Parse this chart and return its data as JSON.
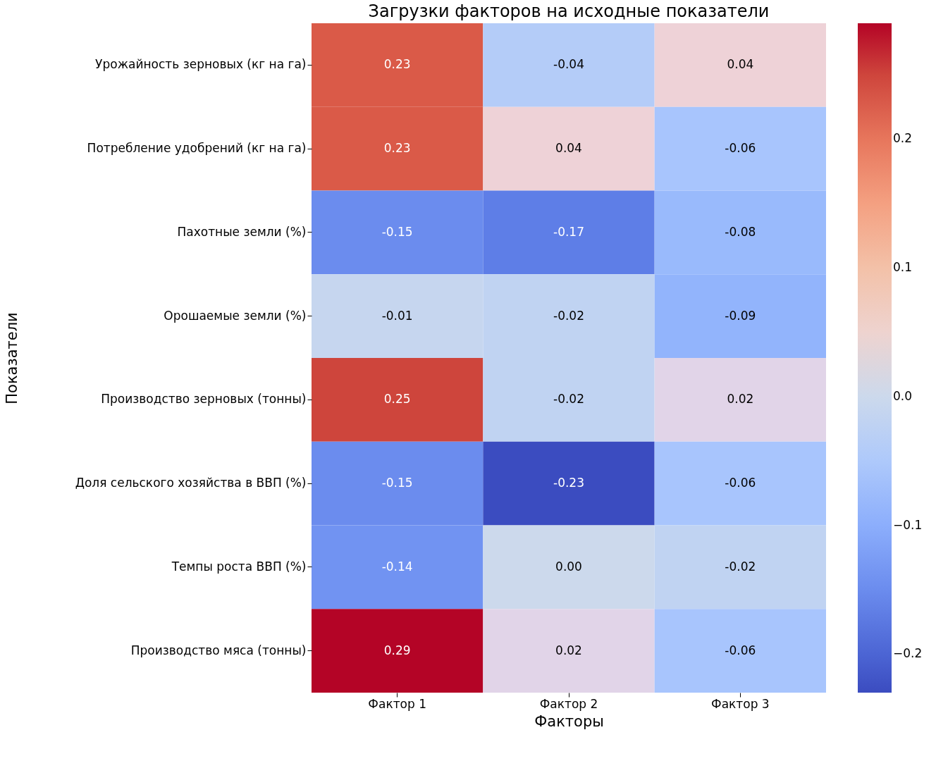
{
  "chart_data": {
    "type": "heatmap",
    "title": "Загрузки факторов на исходные показатели",
    "xlabel": "Факторы",
    "ylabel": "Показатели",
    "categories": [
      "Фактор 1",
      "Фактор 2",
      "Фактор 3"
    ],
    "y_categories": [
      "Урожайность зерновых (кг на га)",
      "Потребление удобрений (кг на га)",
      "Пахотные земли (%)",
      "Орошаемые земли (%)",
      "Производство зерновых (тонны)",
      "Доля сельского хозяйства в ВВП (%)",
      "Темпы роста ВВП (%)",
      "Производство мяса (тонны)"
    ],
    "cells": [
      [
        0.23,
        -0.04,
        0.04
      ],
      [
        0.23,
        0.04,
        -0.06
      ],
      [
        -0.15,
        -0.17,
        -0.08
      ],
      [
        -0.01,
        -0.02,
        -0.09
      ],
      [
        0.25,
        -0.02,
        0.02
      ],
      [
        -0.15,
        -0.23,
        -0.06
      ],
      [
        -0.14,
        0.0,
        -0.02
      ],
      [
        0.29,
        0.02,
        -0.06
      ]
    ],
    "cell_labels": [
      [
        "0.23",
        "-0.04",
        "0.04"
      ],
      [
        "0.23",
        "0.04",
        "-0.06"
      ],
      [
        "-0.15",
        "-0.17",
        "-0.08"
      ],
      [
        "-0.01",
        "-0.02",
        "-0.09"
      ],
      [
        "0.25",
        "-0.02",
        "0.02"
      ],
      [
        "-0.15",
        "-0.23",
        "-0.06"
      ],
      [
        "-0.14",
        "0.00",
        "-0.02"
      ],
      [
        "0.29",
        "0.02",
        "-0.06"
      ]
    ],
    "clim": [
      -0.23,
      0.29
    ],
    "cticks": [
      {
        "value": -0.2,
        "label": "−0.2"
      },
      {
        "value": -0.1,
        "label": "−0.1"
      },
      {
        "value": 0,
        "label": "0.0"
      },
      0.1,
      0.2
    ]
  }
}
